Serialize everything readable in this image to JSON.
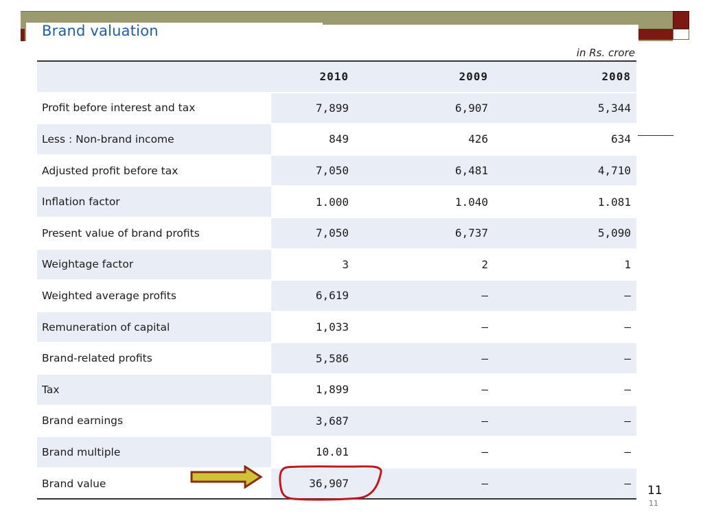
{
  "slide": {
    "title": "Brand valuation",
    "unit_note": "in Rs. crore",
    "page_number": "11",
    "page_number_small": "11"
  },
  "table": {
    "columns": [
      "",
      "2010",
      "2009",
      "2008"
    ],
    "rows": [
      {
        "label": "Profit before interest and tax",
        "v2010": "7,899",
        "v2009": "6,907",
        "v2008": "5,344"
      },
      {
        "label": "Less : Non-brand income",
        "v2010": "849",
        "v2009": "426",
        "v2008": "634"
      },
      {
        "label": "Adjusted profit before tax",
        "v2010": "7,050",
        "v2009": "6,481",
        "v2008": "4,710"
      },
      {
        "label": "Inflation factor",
        "v2010": "1.000",
        "v2009": "1.040",
        "v2008": "1.081"
      },
      {
        "label": "Present value of brand profits",
        "v2010": "7,050",
        "v2009": "6,737",
        "v2008": "5,090"
      },
      {
        "label": "Weightage factor",
        "v2010": "3",
        "v2009": "2",
        "v2008": "1"
      },
      {
        "label": "Weighted average profits",
        "v2010": "6,619",
        "v2009": "–",
        "v2008": "–"
      },
      {
        "label": "Remuneration of capital",
        "v2010": "1,033",
        "v2009": "–",
        "v2008": "–"
      },
      {
        "label": "Brand-related profits",
        "v2010": "5,586",
        "v2009": "–",
        "v2008": "–"
      },
      {
        "label": "Tax",
        "v2010": "1,899",
        "v2009": "–",
        "v2008": "–"
      },
      {
        "label": "Brand earnings",
        "v2010": "3,687",
        "v2009": "–",
        "v2008": "–"
      },
      {
        "label": "Brand multiple",
        "v2010": "10.01",
        "v2009": "–",
        "v2008": "–"
      },
      {
        "label": "Brand value",
        "v2010": "36,907",
        "v2009": "–",
        "v2008": "–"
      }
    ]
  },
  "highlight": {
    "arrow_icon": "right-arrow-icon",
    "circle_icon": "red-circle-annotation",
    "arrow_fill": "#cfc236",
    "arrow_stroke": "#8b2b12",
    "circle_color": "#c0161c"
  }
}
